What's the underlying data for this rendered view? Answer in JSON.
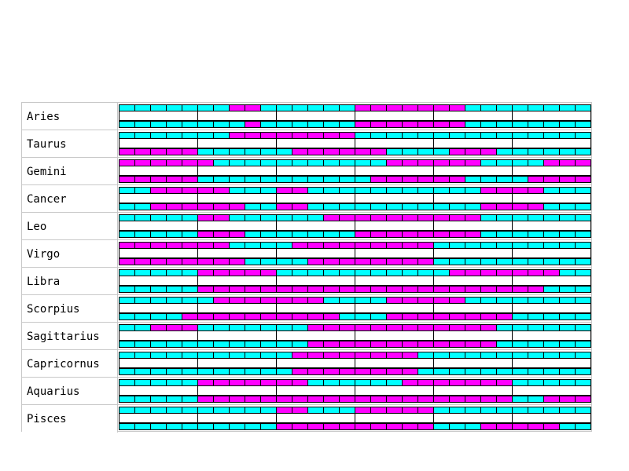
{
  "chart_data": {
    "type": "heatmap",
    "title": "",
    "xlabel": "",
    "ylabel": "",
    "grid": true,
    "legend": "none",
    "colors": {
      "off": "#00ffff",
      "on": "#ff00ff",
      "cell_border": "#000000",
      "row_separator": "#c8c8c8",
      "label_background": "#ffffff"
    },
    "segments_per_track": 30,
    "rows": [
      {
        "label": "Aries",
        "top": [
          0,
          0,
          0,
          0,
          0,
          0,
          0,
          1,
          1,
          0,
          0,
          0,
          0,
          0,
          0,
          1,
          1,
          1,
          1,
          1,
          1,
          1,
          0,
          0,
          0,
          0,
          0,
          0,
          0,
          0
        ],
        "bottom": [
          0,
          0,
          0,
          0,
          0,
          0,
          0,
          0,
          1,
          0,
          0,
          0,
          0,
          0,
          0,
          1,
          1,
          1,
          1,
          1,
          1,
          1,
          0,
          0,
          0,
          0,
          0,
          0,
          0,
          0
        ]
      },
      {
        "label": "Taurus",
        "top": [
          0,
          0,
          0,
          0,
          0,
          0,
          0,
          1,
          1,
          1,
          1,
          1,
          1,
          1,
          1,
          0,
          0,
          0,
          0,
          0,
          0,
          0,
          0,
          0,
          0,
          0,
          0,
          0,
          0,
          0
        ],
        "bottom": [
          1,
          1,
          1,
          1,
          1,
          0,
          0,
          0,
          0,
          0,
          0,
          1,
          1,
          1,
          1,
          1,
          1,
          0,
          0,
          0,
          0,
          1,
          1,
          1,
          0,
          0,
          0,
          0,
          0,
          0
        ]
      },
      {
        "label": "Gemini",
        "top": [
          1,
          1,
          1,
          1,
          1,
          1,
          0,
          0,
          0,
          0,
          0,
          0,
          0,
          0,
          0,
          0,
          0,
          1,
          1,
          1,
          1,
          1,
          1,
          0,
          0,
          0,
          0,
          1,
          1,
          1
        ],
        "bottom": [
          1,
          1,
          1,
          1,
          1,
          0,
          0,
          0,
          0,
          0,
          0,
          0,
          0,
          0,
          0,
          0,
          1,
          1,
          1,
          1,
          1,
          1,
          0,
          0,
          0,
          0,
          1,
          1,
          1,
          1
        ]
      },
      {
        "label": "Cancer",
        "top": [
          0,
          0,
          1,
          1,
          1,
          1,
          1,
          0,
          0,
          0,
          1,
          1,
          0,
          0,
          0,
          0,
          0,
          0,
          0,
          0,
          0,
          0,
          0,
          1,
          1,
          1,
          1,
          0,
          0,
          0
        ],
        "bottom": [
          0,
          0,
          1,
          1,
          1,
          1,
          1,
          1,
          0,
          0,
          1,
          1,
          0,
          0,
          0,
          0,
          0,
          0,
          0,
          0,
          0,
          0,
          0,
          1,
          1,
          1,
          1,
          0,
          0,
          0
        ]
      },
      {
        "label": "Leo",
        "top": [
          0,
          0,
          0,
          0,
          0,
          1,
          1,
          0,
          0,
          0,
          0,
          0,
          0,
          1,
          1,
          1,
          1,
          1,
          1,
          1,
          1,
          1,
          1,
          0,
          0,
          0,
          0,
          0,
          0,
          0
        ],
        "bottom": [
          0,
          0,
          0,
          0,
          0,
          1,
          1,
          1,
          0,
          0,
          0,
          0,
          0,
          0,
          0,
          1,
          1,
          1,
          1,
          1,
          1,
          1,
          1,
          0,
          0,
          0,
          0,
          0,
          0,
          0
        ]
      },
      {
        "label": "Virgo",
        "top": [
          1,
          1,
          1,
          1,
          1,
          1,
          1,
          0,
          0,
          0,
          0,
          1,
          1,
          1,
          1,
          1,
          1,
          1,
          1,
          1,
          0,
          0,
          0,
          0,
          0,
          0,
          0,
          0,
          0,
          0
        ],
        "bottom": [
          1,
          1,
          1,
          1,
          1,
          1,
          1,
          1,
          0,
          0,
          0,
          0,
          1,
          1,
          1,
          1,
          1,
          1,
          1,
          1,
          0,
          0,
          0,
          0,
          0,
          0,
          0,
          0,
          0,
          0
        ]
      },
      {
        "label": "Libra",
        "top": [
          0,
          0,
          0,
          0,
          0,
          1,
          1,
          1,
          1,
          1,
          0,
          0,
          0,
          0,
          0,
          0,
          0,
          0,
          0,
          0,
          0,
          1,
          1,
          1,
          1,
          1,
          1,
          1,
          0,
          0
        ],
        "bottom": [
          0,
          0,
          0,
          0,
          0,
          1,
          1,
          1,
          1,
          1,
          1,
          1,
          1,
          1,
          1,
          1,
          1,
          1,
          1,
          1,
          1,
          1,
          1,
          1,
          1,
          1,
          1,
          0,
          0,
          0
        ]
      },
      {
        "label": "Scorpius",
        "top": [
          0,
          0,
          0,
          0,
          0,
          0,
          1,
          1,
          1,
          1,
          1,
          1,
          1,
          0,
          0,
          0,
          0,
          1,
          1,
          1,
          1,
          1,
          0,
          0,
          0,
          0,
          0,
          0,
          0,
          0
        ],
        "bottom": [
          0,
          0,
          0,
          0,
          1,
          1,
          1,
          1,
          1,
          1,
          1,
          1,
          1,
          1,
          0,
          0,
          0,
          1,
          1,
          1,
          1,
          1,
          1,
          1,
          1,
          0,
          0,
          0,
          0,
          0
        ]
      },
      {
        "label": "Sagittarius",
        "top": [
          0,
          0,
          1,
          1,
          1,
          0,
          0,
          0,
          0,
          0,
          0,
          0,
          1,
          1,
          1,
          1,
          1,
          1,
          1,
          1,
          1,
          1,
          1,
          1,
          0,
          0,
          0,
          0,
          0,
          0
        ],
        "bottom": [
          0,
          0,
          0,
          0,
          0,
          0,
          0,
          0,
          0,
          0,
          0,
          0,
          1,
          1,
          1,
          1,
          1,
          1,
          1,
          1,
          1,
          1,
          1,
          1,
          0,
          0,
          0,
          0,
          0,
          0
        ]
      },
      {
        "label": "Capricornus",
        "top": [
          0,
          0,
          0,
          0,
          0,
          0,
          0,
          0,
          0,
          0,
          0,
          1,
          1,
          1,
          1,
          1,
          1,
          1,
          1,
          0,
          0,
          0,
          0,
          0,
          0,
          0,
          0,
          0,
          0,
          0
        ],
        "bottom": [
          0,
          0,
          0,
          0,
          0,
          0,
          0,
          0,
          0,
          0,
          0,
          1,
          1,
          1,
          1,
          1,
          1,
          1,
          1,
          0,
          0,
          0,
          0,
          0,
          0,
          0,
          0,
          0,
          0,
          0
        ]
      },
      {
        "label": "Aquarius",
        "top": [
          0,
          0,
          0,
          0,
          0,
          1,
          1,
          1,
          1,
          1,
          1,
          1,
          0,
          0,
          0,
          0,
          0,
          0,
          1,
          1,
          1,
          1,
          1,
          1,
          1,
          0,
          0,
          0,
          0,
          0
        ],
        "bottom": [
          0,
          0,
          0,
          0,
          0,
          1,
          1,
          1,
          1,
          1,
          1,
          1,
          1,
          1,
          1,
          1,
          1,
          1,
          1,
          1,
          1,
          1,
          1,
          1,
          1,
          0,
          0,
          1,
          1,
          1
        ]
      },
      {
        "label": "Pisces",
        "top": [
          0,
          0,
          0,
          0,
          0,
          0,
          0,
          0,
          0,
          0,
          1,
          1,
          0,
          0,
          0,
          1,
          1,
          1,
          1,
          1,
          0,
          0,
          0,
          0,
          0,
          0,
          0,
          0,
          0,
          0
        ],
        "bottom": [
          0,
          0,
          0,
          0,
          0,
          0,
          0,
          0,
          0,
          0,
          1,
          1,
          1,
          1,
          1,
          1,
          1,
          1,
          1,
          1,
          0,
          0,
          0,
          1,
          1,
          1,
          1,
          1,
          0,
          0
        ]
      }
    ]
  }
}
